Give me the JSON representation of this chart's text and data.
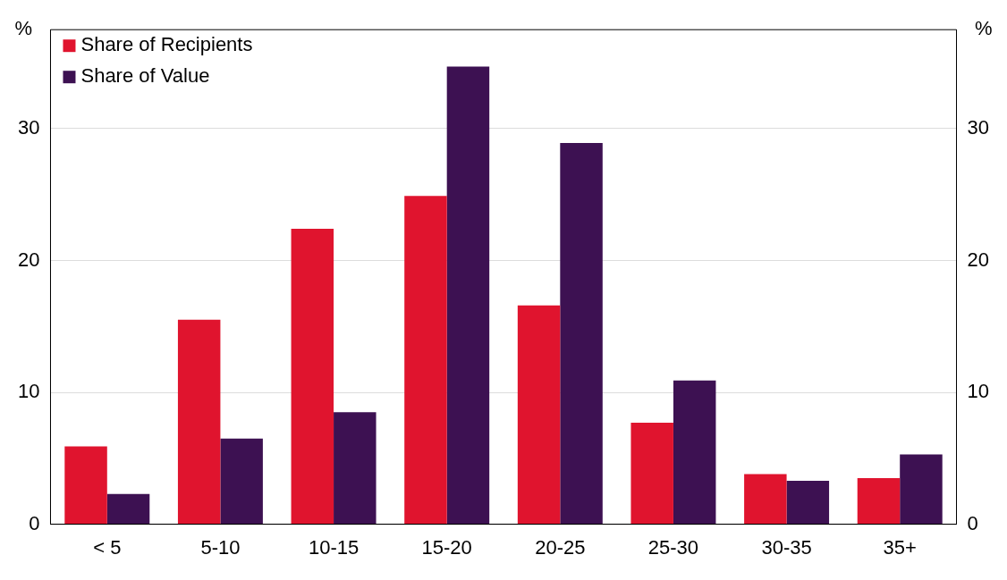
{
  "chart_data": {
    "type": "bar",
    "ylabel": "%",
    "y2label": "%",
    "categories": [
      "< 5",
      "5-10",
      "10-15",
      "15-20",
      "20-25",
      "25-30",
      "30-35",
      "35+"
    ],
    "series": [
      {
        "name": "Share of Recipients",
        "color": "#e0142e",
        "values": [
          5.9,
          15.5,
          22.4,
          24.9,
          16.6,
          7.7,
          3.8,
          3.5
        ]
      },
      {
        "name": "Share of Value",
        "color": "#3d1152",
        "values": [
          2.3,
          6.5,
          8.5,
          34.7,
          28.9,
          10.9,
          3.3,
          5.3
        ]
      }
    ],
    "ylim": [
      0,
      37.5
    ],
    "yticks": [
      0,
      10,
      20,
      30
    ],
    "y2lim": [
      0,
      37.5
    ],
    "y2ticks": [
      0,
      10,
      20,
      30
    ],
    "grid": "y",
    "legend": "top left"
  }
}
